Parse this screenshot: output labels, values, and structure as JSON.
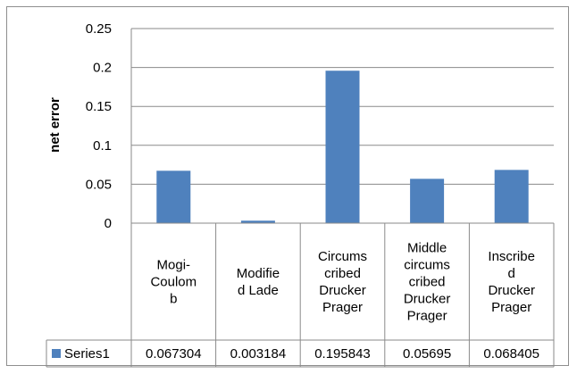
{
  "chart_data": {
    "type": "bar",
    "ylabel": "net error",
    "xlabel": "",
    "ylim": [
      0,
      0.25
    ],
    "yticks": [
      "0",
      "0.05",
      "0.1",
      "0.15",
      "0.2",
      "0.25"
    ],
    "grid": true,
    "legend_placement": "table-left",
    "categories": [
      [
        "Mogi-",
        "Coulom",
        "b"
      ],
      [
        "Modifie",
        "d Lade"
      ],
      [
        "Circums",
        "cribed",
        "Drucker",
        "Prager"
      ],
      [
        "Middle",
        "circums",
        "cribed",
        "Drucker",
        "Prager"
      ],
      [
        "Inscribe",
        "d",
        "Drucker",
        "Prager"
      ]
    ],
    "series": [
      {
        "name": "Series1",
        "color": "#4f81bd",
        "values": [
          0.067304,
          0.003184,
          0.195843,
          0.05695,
          0.068405
        ],
        "value_labels": [
          "0.067304",
          "0.003184",
          "0.195843",
          "0.05695",
          "0.068405"
        ]
      }
    ]
  }
}
